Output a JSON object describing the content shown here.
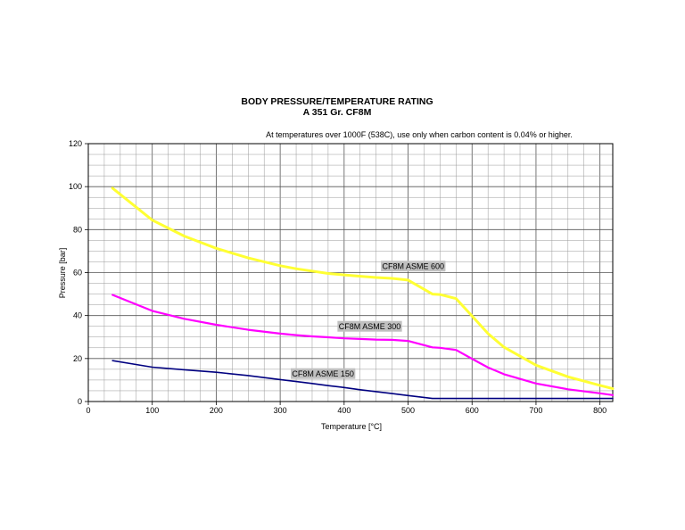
{
  "chart_data": {
    "type": "line",
    "title": "BODY PRESSURE/TEMPERATURE RATING",
    "subtitle": "A 351 Gr. CF8M",
    "note": "At temperatures over 1000F (538C), use only when carbon content is 0.04% or higher.",
    "xlabel": "Temperature [°C]",
    "ylabel": "Pressure [bar]",
    "xlim": [
      0,
      820
    ],
    "ylim": [
      0,
      120
    ],
    "x_ticks": [
      0,
      100,
      200,
      300,
      400,
      500,
      600,
      700,
      800
    ],
    "y_ticks": [
      0,
      20,
      40,
      60,
      80,
      100,
      120
    ],
    "grid": true,
    "series": [
      {
        "name": "CF8M ASME 150",
        "color": "#000080",
        "x": [
          38,
          100,
          150,
          200,
          250,
          300,
          325,
          350,
          375,
          400,
          425,
          450,
          475,
          500,
          538,
          550,
          575,
          600,
          625,
          650,
          700,
          750,
          800,
          820
        ],
        "y": [
          19.0,
          16.0,
          14.8,
          13.6,
          12.1,
          10.2,
          9.3,
          8.4,
          7.4,
          6.5,
          5.5,
          4.6,
          3.7,
          2.8,
          1.4,
          1.4,
          1.4,
          1.4,
          1.4,
          1.4,
          1.4,
          1.4,
          1.4,
          1.4
        ]
      },
      {
        "name": "CF8M ASME 300",
        "color": "#ff00ff",
        "x": [
          38,
          100,
          150,
          200,
          250,
          300,
          325,
          350,
          375,
          400,
          425,
          450,
          475,
          500,
          538,
          550,
          575,
          600,
          625,
          650,
          700,
          750,
          800,
          820
        ],
        "y": [
          49.6,
          42.2,
          38.5,
          35.7,
          33.4,
          31.6,
          30.9,
          30.3,
          29.9,
          29.4,
          29.1,
          28.8,
          28.7,
          28.2,
          25.2,
          25.0,
          24.0,
          19.9,
          15.8,
          12.7,
          8.4,
          5.7,
          3.8,
          3.0
        ]
      },
      {
        "name": "CF8M ASME 600",
        "color": "#ffff33",
        "x": [
          38,
          100,
          150,
          200,
          250,
          300,
          325,
          350,
          375,
          400,
          425,
          450,
          475,
          500,
          538,
          550,
          575,
          600,
          625,
          650,
          700,
          750,
          800,
          820
        ],
        "y": [
          99.3,
          84.4,
          77.0,
          71.3,
          66.8,
          63.2,
          61.8,
          60.7,
          59.6,
          58.9,
          58.3,
          57.7,
          57.3,
          56.5,
          50.0,
          49.8,
          47.9,
          39.8,
          31.6,
          25.3,
          16.9,
          11.5,
          7.5,
          6.0
        ]
      }
    ],
    "series_labels": [
      "CF8M ASME 150",
      "CF8M ASME 300",
      "CF8M ASME 600"
    ]
  }
}
